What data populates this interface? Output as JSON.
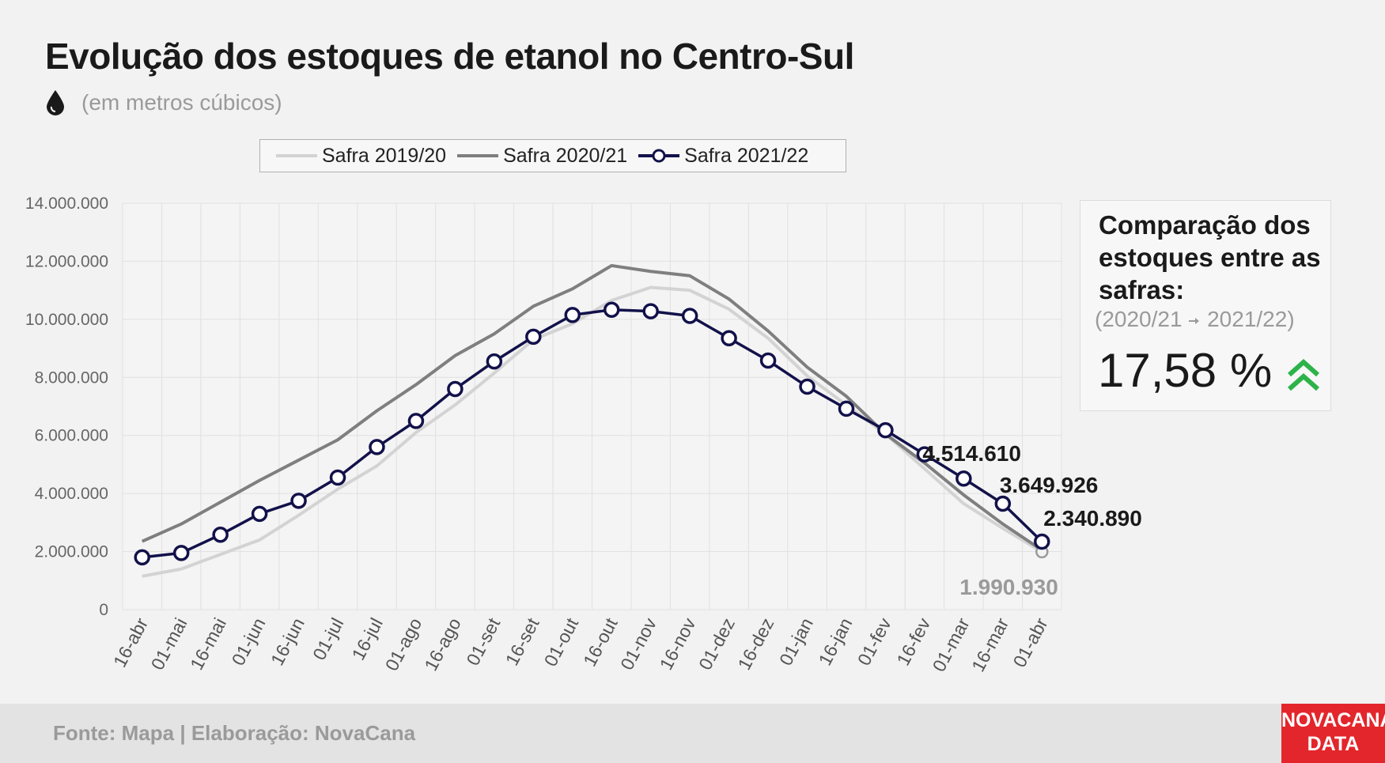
{
  "header": {
    "title": "Evolução dos estoques de etanol no Centro-Sul",
    "subtitle": "(em metros cúbicos)",
    "unit_icon": "drop-icon"
  },
  "legend": {
    "items": [
      {
        "label": "Safra 2019/20",
        "color": "#d3d3d3"
      },
      {
        "label": "Safra 2020/21",
        "color": "#7f7f7f"
      },
      {
        "label": "Safra 2021/22",
        "color": "#12114a"
      }
    ]
  },
  "kpi": {
    "title": "Comparação dos estoques entre as safras:",
    "compare_from": "(2020/21",
    "compare_to": "2021/22)",
    "arrow_icon": "arrow-right-icon",
    "value": "17,58 %",
    "trend_icon": "double-chevron-up-icon",
    "trend_color": "#2db34a"
  },
  "footer": {
    "source": "Fonte: Mapa | Elaboração: NovaCana",
    "logo_line1": "NOVACANA",
    "logo_line2": "DATA",
    "logo_color": "#e3262b"
  },
  "chart_data": {
    "type": "line",
    "categories": [
      "16-abr",
      "01-mai",
      "16-mai",
      "01-jun",
      "16-jun",
      "01-jul",
      "16-jul",
      "01-ago",
      "16-ago",
      "01-set",
      "16-set",
      "01-out",
      "16-out",
      "01-nov",
      "16-nov",
      "01-dez",
      "16-dez",
      "01-jan",
      "16-jan",
      "01-fev",
      "16-fev",
      "01-mar",
      "16-mar",
      "01-abr"
    ],
    "ylim": [
      0,
      14000000
    ],
    "yticks": [
      0,
      2000000,
      4000000,
      6000000,
      8000000,
      10000000,
      12000000,
      14000000
    ],
    "ytick_labels": [
      "0",
      "2.000.000",
      "4.000.000",
      "6.000.000",
      "8.000.000",
      "10.000.000",
      "12.000.000",
      "14.000.000"
    ],
    "grid": true,
    "legend_position": "top",
    "series": [
      {
        "name": "Safra 2019/20",
        "color": "#d3d3d3",
        "values": [
          1150000,
          1400000,
          1900000,
          2400000,
          3250000,
          4150000,
          4950000,
          6100000,
          7050000,
          8150000,
          9300000,
          9850000,
          10650000,
          11100000,
          11000000,
          10350000,
          9350000,
          8050000,
          7050000,
          6050000,
          4850000,
          3650000,
          2800000,
          1990930
        ]
      },
      {
        "name": "Safra 2020/21",
        "color": "#7f7f7f",
        "values": [
          2350000,
          2950000,
          3700000,
          4450000,
          5150000,
          5850000,
          6850000,
          7750000,
          8750000,
          9500000,
          10450000,
          11050000,
          11850000,
          11650000,
          11500000,
          10700000,
          9600000,
          8350000,
          7350000,
          6050000,
          5050000,
          3950000,
          2950000,
          2050000
        ]
      },
      {
        "name": "Safra 2021/22",
        "color": "#12114a",
        "markers": true,
        "values": [
          1800000,
          1950000,
          2580000,
          3300000,
          3750000,
          4550000,
          5600000,
          6500000,
          7600000,
          8550000,
          9400000,
          10150000,
          10330000,
          10280000,
          10120000,
          9350000,
          8580000,
          7680000,
          6920000,
          6180000,
          5350000,
          4514610,
          3649926,
          2340890
        ]
      }
    ],
    "annotations": [
      {
        "text": "4.514.610",
        "series": "Safra 2021/22",
        "category": "01-mar",
        "color": "#1a1a1a"
      },
      {
        "text": "3.649.926",
        "series": "Safra 2021/22",
        "category": "16-mar",
        "color": "#1a1a1a"
      },
      {
        "text": "2.340.890",
        "series": "Safra 2021/22",
        "category": "01-abr",
        "color": "#1a1a1a"
      },
      {
        "text": "1.990.930",
        "series": "Safra 2019/20",
        "category": "01-abr",
        "color": "#9a9a9a"
      }
    ]
  }
}
